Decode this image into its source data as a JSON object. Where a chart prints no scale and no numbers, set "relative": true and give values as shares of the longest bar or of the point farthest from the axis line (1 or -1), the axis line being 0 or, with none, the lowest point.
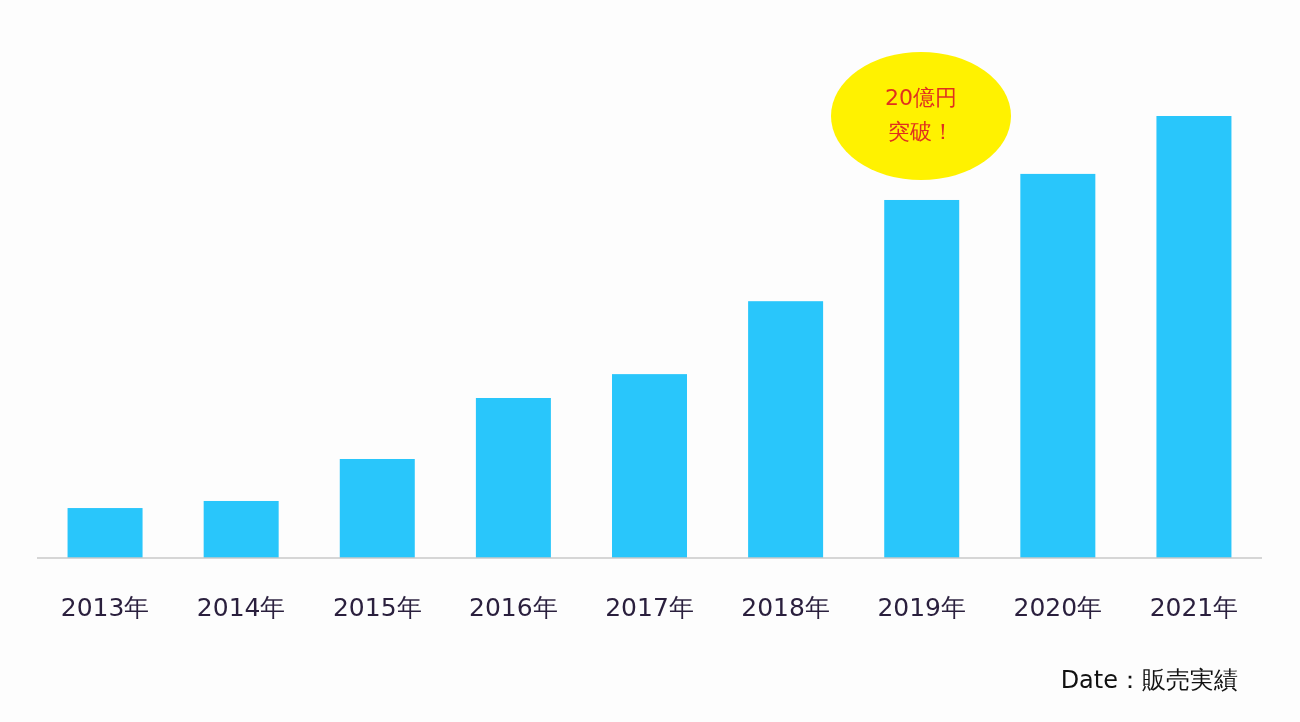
{
  "chart_data": {
    "type": "bar",
    "relative": true,
    "color": "#29c6fb",
    "categories": [
      "2013年",
      "2014年",
      "2015年",
      "2016年",
      "2017年",
      "2018年",
      "2019年",
      "2020年",
      "2021年"
    ],
    "values": [
      0.113,
      0.129,
      0.224,
      0.362,
      0.416,
      0.581,
      0.81,
      0.869,
      1.0
    ],
    "annotations": [
      "20億円突破！",
      "Date：販売実績"
    ]
  }
}
